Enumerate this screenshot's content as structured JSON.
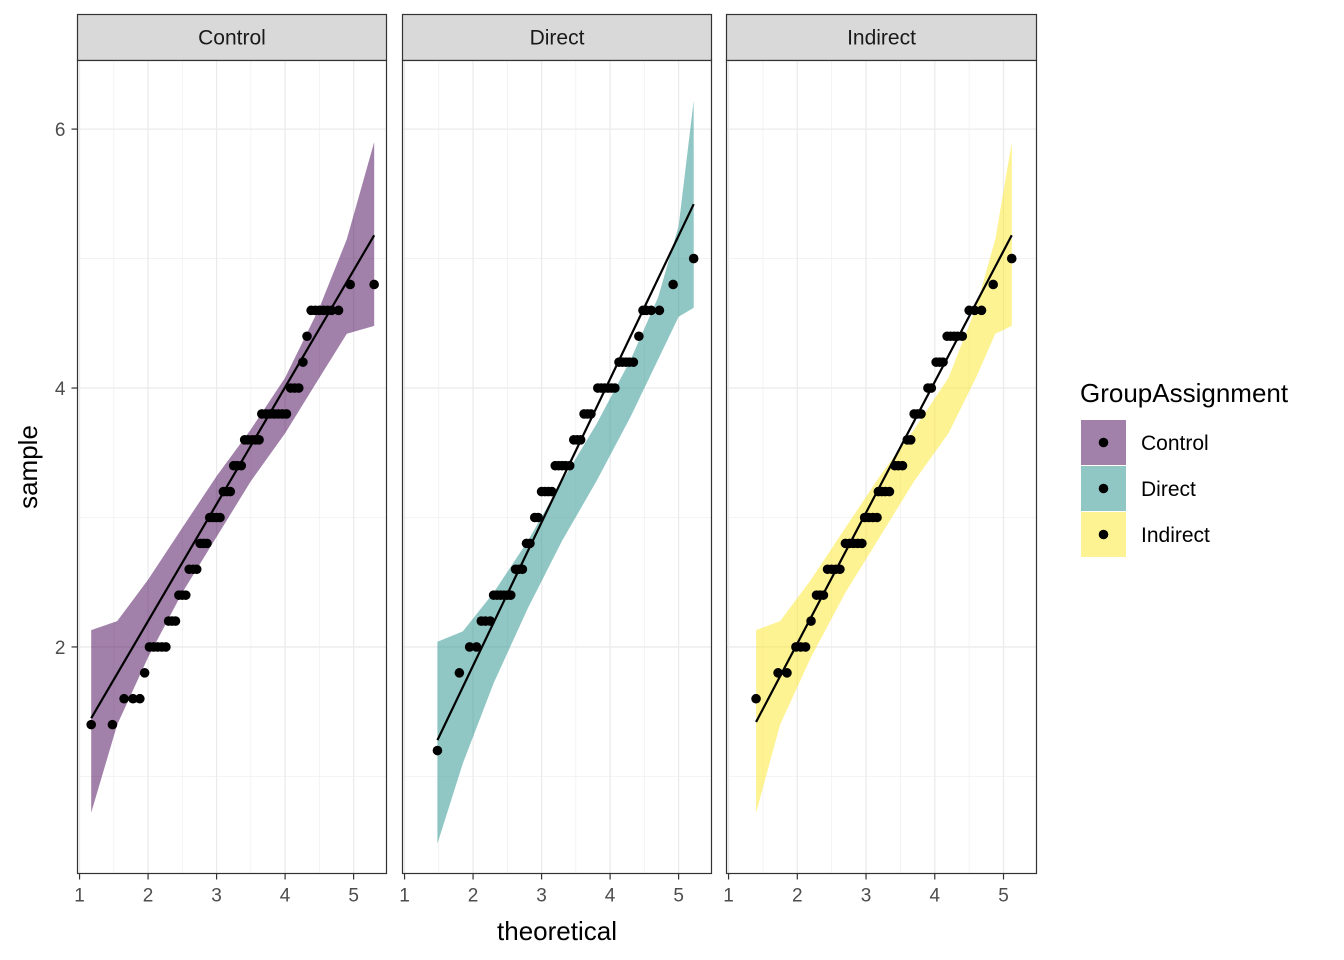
{
  "chart_data": {
    "type": "scatter",
    "subtype": "qq-plot faceted with confidence bands",
    "xlabel": "theoretical",
    "ylabel": "sample",
    "x_ticks": [
      1,
      2,
      3,
      4,
      5
    ],
    "y_ticks": [
      2,
      4,
      6
    ],
    "xlim": [
      0.97,
      5.48
    ],
    "ylim": [
      0.25,
      6.53
    ],
    "grid": true,
    "legend": {
      "title": "GroupAssignment",
      "position": "right",
      "entries": [
        {
          "label": "Control",
          "color": "#440154"
        },
        {
          "label": "Direct",
          "color": "#21908C"
        },
        {
          "label": "Indirect",
          "color": "#FDE725"
        }
      ]
    },
    "fill_alpha": 0.5,
    "facets": [
      {
        "label": "Control",
        "color": "#440154",
        "line": [
          [
            1.17,
            1.45
          ],
          [
            5.3,
            5.18
          ]
        ],
        "band_upper": [
          [
            1.17,
            2.13
          ],
          [
            1.55,
            2.2
          ],
          [
            2.0,
            2.52
          ],
          [
            2.5,
            2.92
          ],
          [
            3.0,
            3.32
          ],
          [
            3.5,
            3.68
          ],
          [
            4.0,
            4.08
          ],
          [
            4.5,
            4.62
          ],
          [
            4.9,
            5.15
          ],
          [
            5.3,
            5.9
          ]
        ],
        "band_lower": [
          [
            1.17,
            0.72
          ],
          [
            1.55,
            1.4
          ],
          [
            2.0,
            1.92
          ],
          [
            2.5,
            2.42
          ],
          [
            3.0,
            2.85
          ],
          [
            3.5,
            3.28
          ],
          [
            4.0,
            3.65
          ],
          [
            4.5,
            4.08
          ],
          [
            4.9,
            4.42
          ],
          [
            5.3,
            4.48
          ]
        ],
        "points": [
          [
            1.17,
            1.4
          ],
          [
            1.48,
            1.4
          ],
          [
            1.65,
            1.6
          ],
          [
            1.78,
            1.6
          ],
          [
            1.88,
            1.6
          ],
          [
            1.95,
            1.8
          ],
          [
            2.02,
            2.0
          ],
          [
            2.08,
            2.0
          ],
          [
            2.14,
            2.0
          ],
          [
            2.2,
            2.0
          ],
          [
            2.26,
            2.0
          ],
          [
            2.3,
            2.2
          ],
          [
            2.35,
            2.2
          ],
          [
            2.4,
            2.2
          ],
          [
            2.45,
            2.4
          ],
          [
            2.5,
            2.4
          ],
          [
            2.55,
            2.4
          ],
          [
            2.6,
            2.6
          ],
          [
            2.66,
            2.6
          ],
          [
            2.71,
            2.6
          ],
          [
            2.76,
            2.8
          ],
          [
            2.81,
            2.8
          ],
          [
            2.86,
            2.8
          ],
          [
            2.9,
            3.0
          ],
          [
            2.95,
            3.0
          ],
          [
            3.0,
            3.0
          ],
          [
            3.05,
            3.0
          ],
          [
            3.1,
            3.2
          ],
          [
            3.15,
            3.2
          ],
          [
            3.2,
            3.2
          ],
          [
            3.25,
            3.4
          ],
          [
            3.3,
            3.4
          ],
          [
            3.36,
            3.4
          ],
          [
            3.41,
            3.6
          ],
          [
            3.46,
            3.6
          ],
          [
            3.52,
            3.6
          ],
          [
            3.57,
            3.6
          ],
          [
            3.62,
            3.6
          ],
          [
            3.66,
            3.8
          ],
          [
            3.72,
            3.8
          ],
          [
            3.78,
            3.8
          ],
          [
            3.84,
            3.8
          ],
          [
            3.9,
            3.8
          ],
          [
            3.96,
            3.8
          ],
          [
            4.02,
            3.8
          ],
          [
            4.08,
            4.0
          ],
          [
            4.14,
            4.0
          ],
          [
            4.2,
            4.0
          ],
          [
            4.26,
            4.2
          ],
          [
            4.32,
            4.4
          ],
          [
            4.38,
            4.6
          ],
          [
            4.44,
            4.6
          ],
          [
            4.5,
            4.6
          ],
          [
            4.56,
            4.6
          ],
          [
            4.62,
            4.6
          ],
          [
            4.68,
            4.6
          ],
          [
            4.78,
            4.6
          ],
          [
            4.95,
            4.8
          ],
          [
            5.3,
            4.8
          ]
        ]
      },
      {
        "label": "Direct",
        "color": "#21908C",
        "line": [
          [
            1.48,
            1.28
          ],
          [
            5.22,
            5.42
          ]
        ],
        "band_upper": [
          [
            1.48,
            2.04
          ],
          [
            1.85,
            2.12
          ],
          [
            2.3,
            2.42
          ],
          [
            2.8,
            2.82
          ],
          [
            3.3,
            3.28
          ],
          [
            3.8,
            3.72
          ],
          [
            4.3,
            4.22
          ],
          [
            4.7,
            4.7
          ],
          [
            5.0,
            5.25
          ],
          [
            5.22,
            6.22
          ]
        ],
        "band_lower": [
          [
            1.48,
            0.48
          ],
          [
            1.85,
            1.1
          ],
          [
            2.3,
            1.72
          ],
          [
            2.8,
            2.3
          ],
          [
            3.3,
            2.82
          ],
          [
            3.8,
            3.28
          ],
          [
            4.3,
            3.78
          ],
          [
            4.7,
            4.22
          ],
          [
            5.0,
            4.55
          ],
          [
            5.22,
            4.62
          ]
        ],
        "points": [
          [
            1.48,
            1.2
          ],
          [
            1.8,
            1.8
          ],
          [
            1.95,
            2.0
          ],
          [
            2.05,
            2.0
          ],
          [
            2.12,
            2.2
          ],
          [
            2.18,
            2.2
          ],
          [
            2.25,
            2.2
          ],
          [
            2.3,
            2.4
          ],
          [
            2.35,
            2.4
          ],
          [
            2.4,
            2.4
          ],
          [
            2.45,
            2.4
          ],
          [
            2.5,
            2.4
          ],
          [
            2.55,
            2.4
          ],
          [
            2.62,
            2.6
          ],
          [
            2.67,
            2.6
          ],
          [
            2.72,
            2.6
          ],
          [
            2.78,
            2.8
          ],
          [
            2.83,
            2.8
          ],
          [
            2.9,
            3.0
          ],
          [
            2.95,
            3.0
          ],
          [
            3.0,
            3.2
          ],
          [
            3.05,
            3.2
          ],
          [
            3.1,
            3.2
          ],
          [
            3.15,
            3.2
          ],
          [
            3.2,
            3.4
          ],
          [
            3.25,
            3.4
          ],
          [
            3.3,
            3.4
          ],
          [
            3.35,
            3.4
          ],
          [
            3.41,
            3.4
          ],
          [
            3.47,
            3.6
          ],
          [
            3.52,
            3.6
          ],
          [
            3.57,
            3.6
          ],
          [
            3.62,
            3.8
          ],
          [
            3.67,
            3.8
          ],
          [
            3.72,
            3.8
          ],
          [
            3.82,
            4.0
          ],
          [
            3.87,
            4.0
          ],
          [
            3.92,
            4.0
          ],
          [
            3.97,
            4.0
          ],
          [
            4.02,
            4.0
          ],
          [
            4.07,
            4.0
          ],
          [
            4.13,
            4.2
          ],
          [
            4.18,
            4.2
          ],
          [
            4.23,
            4.2
          ],
          [
            4.28,
            4.2
          ],
          [
            4.34,
            4.2
          ],
          [
            4.42,
            4.4
          ],
          [
            4.48,
            4.6
          ],
          [
            4.53,
            4.6
          ],
          [
            4.6,
            4.6
          ],
          [
            4.72,
            4.6
          ],
          [
            4.92,
            4.8
          ],
          [
            5.22,
            5.0
          ]
        ]
      },
      {
        "label": "Indirect",
        "color": "#FDE725",
        "line": [
          [
            1.4,
            1.42
          ],
          [
            5.12,
            5.18
          ]
        ],
        "band_upper": [
          [
            1.4,
            2.13
          ],
          [
            1.75,
            2.2
          ],
          [
            2.2,
            2.52
          ],
          [
            2.7,
            2.92
          ],
          [
            3.2,
            3.32
          ],
          [
            3.7,
            3.68
          ],
          [
            4.2,
            4.08
          ],
          [
            4.6,
            4.62
          ],
          [
            4.88,
            5.15
          ],
          [
            5.12,
            5.9
          ]
        ],
        "band_lower": [
          [
            1.4,
            0.72
          ],
          [
            1.75,
            1.4
          ],
          [
            2.2,
            1.92
          ],
          [
            2.7,
            2.42
          ],
          [
            3.2,
            2.85
          ],
          [
            3.7,
            3.28
          ],
          [
            4.2,
            3.65
          ],
          [
            4.6,
            4.08
          ],
          [
            4.88,
            4.42
          ],
          [
            5.12,
            4.48
          ]
        ],
        "points": [
          [
            1.4,
            1.6
          ],
          [
            1.72,
            1.8
          ],
          [
            1.85,
            1.8
          ],
          [
            1.98,
            2.0
          ],
          [
            2.05,
            2.0
          ],
          [
            2.12,
            2.0
          ],
          [
            2.2,
            2.2
          ],
          [
            2.28,
            2.4
          ],
          [
            2.33,
            2.4
          ],
          [
            2.38,
            2.4
          ],
          [
            2.44,
            2.6
          ],
          [
            2.5,
            2.6
          ],
          [
            2.56,
            2.6
          ],
          [
            2.62,
            2.6
          ],
          [
            2.7,
            2.8
          ],
          [
            2.76,
            2.8
          ],
          [
            2.82,
            2.8
          ],
          [
            2.88,
            2.8
          ],
          [
            2.94,
            2.8
          ],
          [
            2.98,
            3.0
          ],
          [
            3.04,
            3.0
          ],
          [
            3.1,
            3.0
          ],
          [
            3.16,
            3.0
          ],
          [
            3.18,
            3.2
          ],
          [
            3.23,
            3.2
          ],
          [
            3.28,
            3.2
          ],
          [
            3.34,
            3.2
          ],
          [
            3.42,
            3.4
          ],
          [
            3.47,
            3.4
          ],
          [
            3.53,
            3.4
          ],
          [
            3.6,
            3.6
          ],
          [
            3.65,
            3.6
          ],
          [
            3.7,
            3.8
          ],
          [
            3.75,
            3.8
          ],
          [
            3.8,
            3.8
          ],
          [
            3.9,
            4.0
          ],
          [
            3.95,
            4.0
          ],
          [
            4.02,
            4.2
          ],
          [
            4.07,
            4.2
          ],
          [
            4.12,
            4.2
          ],
          [
            4.18,
            4.4
          ],
          [
            4.23,
            4.4
          ],
          [
            4.28,
            4.4
          ],
          [
            4.33,
            4.4
          ],
          [
            4.4,
            4.4
          ],
          [
            4.5,
            4.6
          ],
          [
            4.58,
            4.6
          ],
          [
            4.68,
            4.6
          ],
          [
            4.85,
            4.8
          ],
          [
            5.12,
            5.0
          ]
        ]
      }
    ]
  }
}
